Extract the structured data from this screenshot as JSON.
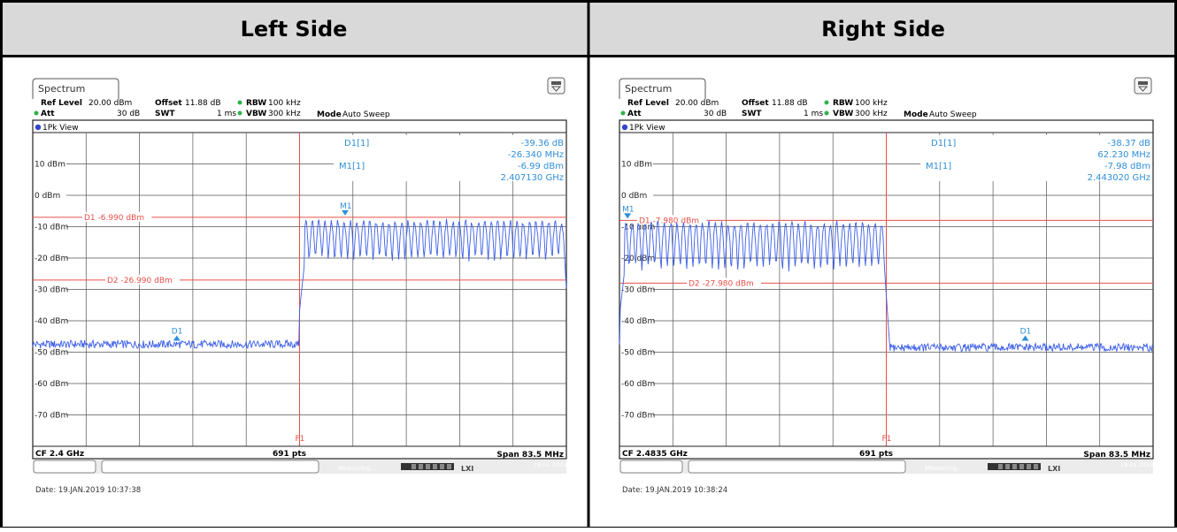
{
  "table": {
    "headers": [
      "Left Side",
      "Right Side"
    ]
  },
  "colors": {
    "trace": "#3b5ee8",
    "marker": "#2e8fd8",
    "line": "#e8504a",
    "grid": "#555555"
  },
  "panels": [
    {
      "tab": "Spectrum",
      "ref_level_label": "Ref Level",
      "ref_level": "20.00 dBm",
      "offset_label": "Offset",
      "offset": "11.88 dB",
      "rbw_label": "RBW",
      "rbw": "100 kHz",
      "att_label": "Att",
      "att": "30 dB",
      "swt_label": "SWT",
      "swt": "1 ms",
      "vbw_label": "VBW",
      "vbw": "300 kHz",
      "mode_label": "Mode",
      "mode": "Auto Sweep",
      "view": "1Pk View",
      "marker_table": {
        "d1_label": "D1[1]",
        "d1_level": "-39.36 dB",
        "d1_freq": "-26.340 MHz",
        "m1_label": "M1[1]",
        "m1_level": "-6.99 dBm",
        "m1_freq": "2.407130 GHz"
      },
      "d1_line_label": "D1  -6.990 dBm",
      "d2_line_label": "D2  -26.990 dBm",
      "f1_label": "F1",
      "m1_tag": "M1",
      "d1_tag": "D1",
      "cf": "CF 2.4 GHz",
      "pts": "691 pts",
      "span": "Span 83.5 MHz",
      "date": "Date: 19.JAN.2019  10:37:38",
      "status_text": "Measuring...",
      "status_date": "19.01.2019"
    },
    {
      "tab": "Spectrum",
      "ref_level_label": "Ref Level",
      "ref_level": "20.00 dBm",
      "offset_label": "Offset",
      "offset": "11.88 dB",
      "rbw_label": "RBW",
      "rbw": "100 kHz",
      "att_label": "Att",
      "att": "30 dB",
      "swt_label": "SWT",
      "swt": "1 ms",
      "vbw_label": "VBW",
      "vbw": "300 kHz",
      "mode_label": "Mode",
      "mode": "Auto Sweep",
      "view": "1Pk View",
      "marker_table": {
        "d1_label": "D1[1]",
        "d1_level": "-38.37 dB",
        "d1_freq": "62.230 MHz",
        "m1_label": "M1[1]",
        "m1_level": "-7.98 dBm",
        "m1_freq": "2.443020 GHz"
      },
      "d1_line_label": "D1  -7.980 dBm",
      "d2_line_label": "D2  -27.980 dBm",
      "f1_label": "F1",
      "m1_tag": "M1",
      "d1_tag": "D1",
      "cf": "CF 2.4835 GHz",
      "pts": "691 pts",
      "span": "Span 83.5 MHz",
      "date": "Date: 19.JAN.2019  10:38:24",
      "status_text": "Measuring...",
      "status_date": "19.01.2019"
    }
  ],
  "chart_data": [
    {
      "type": "line",
      "x_unit": "GHz",
      "y_unit": "dBm",
      "center_ghz": 2.4,
      "span_mhz": 83.5,
      "ylim": [
        -80,
        20
      ],
      "y_ticks": [
        {
          "value": 10,
          "label": "10 dBm"
        },
        {
          "value": 0,
          "label": "0 dBm"
        },
        {
          "value": -10,
          "label": "-10 dBm"
        },
        {
          "value": -20,
          "label": "-20 dBm"
        },
        {
          "value": -30,
          "label": "-30 dBm"
        },
        {
          "value": -40,
          "label": "-40 dBm"
        },
        {
          "value": -50,
          "label": "-50 dBm"
        },
        {
          "value": -60,
          "label": "-60 dBm"
        },
        {
          "value": -70,
          "label": "-70 dBm"
        }
      ],
      "grid": true,
      "limit_lines": [
        {
          "name": "D1",
          "value": -6.99
        },
        {
          "name": "D2",
          "value": -26.99
        }
      ],
      "f1_ghz": 2.4,
      "markers": [
        {
          "name": "M1",
          "x_ghz": 2.40713,
          "y": -6.99
        },
        {
          "name": "D1",
          "x_ghz": 2.38079,
          "y": -46.35
        }
      ],
      "trace": {
        "noise_floor": -47.5,
        "band_start_ghz": 2.4,
        "band_end_ghz": 2.44175,
        "band_top": -8.5,
        "band_bottom": -20.5,
        "channel_spacing_mhz": 1.0
      }
    },
    {
      "type": "line",
      "x_unit": "GHz",
      "y_unit": "dBm",
      "center_ghz": 2.4835,
      "span_mhz": 83.5,
      "ylim": [
        -80,
        20
      ],
      "y_ticks": [
        {
          "value": 10,
          "label": "10 dBm"
        },
        {
          "value": 0,
          "label": "0 dBm"
        },
        {
          "value": -10,
          "label": "-10 dBm"
        },
        {
          "value": -20,
          "label": "-20 dBm"
        },
        {
          "value": -30,
          "label": "-30 dBm"
        },
        {
          "value": -40,
          "label": "-40 dBm"
        },
        {
          "value": -50,
          "label": "-50 dBm"
        },
        {
          "value": -60,
          "label": "-60 dBm"
        },
        {
          "value": -70,
          "label": "-70 dBm"
        }
      ],
      "grid": true,
      "limit_lines": [
        {
          "name": "D1",
          "value": -7.98
        },
        {
          "name": "D2",
          "value": -27.98
        }
      ],
      "f1_ghz": 2.4835,
      "markers": [
        {
          "name": "M1",
          "x_ghz": 2.44302,
          "y": -7.98
        },
        {
          "name": "D1",
          "x_ghz": 2.50525,
          "y": -46.35
        }
      ],
      "trace": {
        "noise_floor": -48.5,
        "band_start_ghz": 2.44175,
        "band_end_ghz": 2.4835,
        "band_top": -9.0,
        "band_bottom": -23.5,
        "channel_spacing_mhz": 1.0
      }
    }
  ]
}
